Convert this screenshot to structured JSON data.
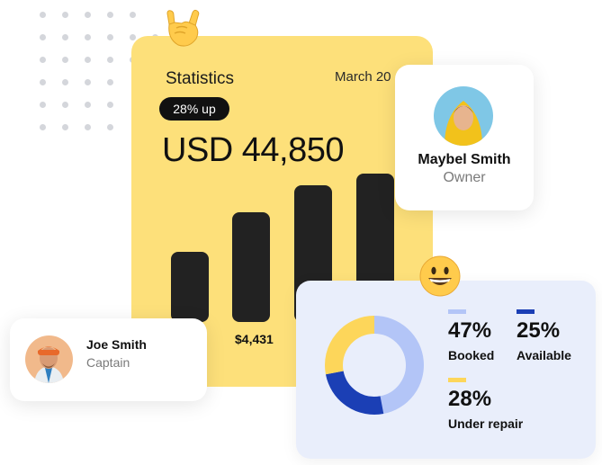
{
  "stats": {
    "title": "Statistics",
    "date": "March 20",
    "change_badge": "28% up",
    "amount": "USD 44,850",
    "bar_value_label": "$4,431"
  },
  "profiles": {
    "maybel": {
      "name": "Maybel Smith",
      "role": "Owner"
    },
    "joe": {
      "name": "Joe Smith",
      "role": "Captain"
    }
  },
  "booking": {
    "legend": [
      {
        "percent": "47%",
        "label": "Booked",
        "color": "#b3c5f7"
      },
      {
        "percent": "25%",
        "label": "Available",
        "color": "#1b3fb5"
      },
      {
        "percent": "28%",
        "label": "Under repair",
        "color": "#fdd65a"
      }
    ]
  },
  "chart_data": [
    {
      "type": "bar",
      "categories": [
        "",
        "",
        "",
        ""
      ],
      "values": [
        0.47,
        0.74,
        0.92,
        1.0
      ],
      "data_labels": [
        "",
        "$4,431",
        "",
        ""
      ]
    },
    {
      "type": "pie",
      "categories": [
        "Booked",
        "Available",
        "Under repair"
      ],
      "values": [
        47,
        25,
        28
      ],
      "colors": [
        "#b3c5f7",
        "#1b3fb5",
        "#fdd65a"
      ]
    }
  ],
  "icons": {
    "hand": "rock-on-hand-icon",
    "smile": "grinning-face-icon"
  }
}
